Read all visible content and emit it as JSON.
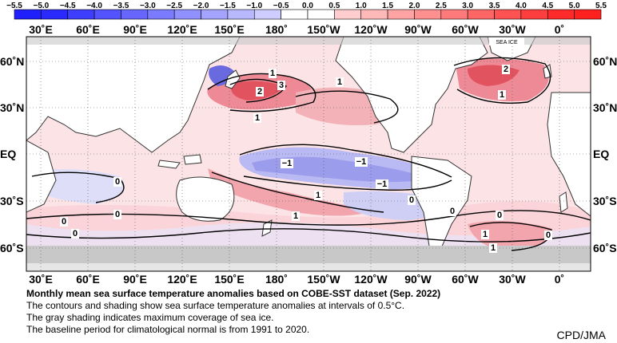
{
  "colorbar": {
    "ticks": [
      "−5.5",
      "−5.0",
      "−4.5",
      "−4.0",
      "−3.5",
      "−3.0",
      "−2.5",
      "−2.0",
      "−1.5",
      "−1.0",
      "−0.5",
      "0.0",
      "0.5",
      "1.0",
      "1.5",
      "2.0",
      "2.5",
      "3.0",
      "3.5",
      "4.0",
      "4.5",
      "5.0",
      "5.5"
    ],
    "negative_color": "#2020ff",
    "positive_color": "#ff2020",
    "neutral_color": "#ffffff"
  },
  "map": {
    "lon_labels_top": [
      "30˚E",
      "60˚E",
      "90˚E",
      "120˚E",
      "150˚E",
      "180˚",
      "150˚W",
      "120˚W",
      "90˚W",
      "60˚W",
      "30˚W",
      "0˚"
    ],
    "lon_labels_bottom": [
      "30˚E",
      "60˚E",
      "90˚E",
      "120˚E",
      "150˚E",
      "180˚",
      "150˚W",
      "120˚W",
      "90˚W",
      "60˚W",
      "30˚W",
      "0˚"
    ],
    "lat_labels_left": [
      "60˚N",
      "30˚N",
      "EQ",
      "30˚S",
      "60˚S"
    ],
    "lat_labels_right": [
      "60˚N",
      "30˚N",
      "EQ",
      "30˚S",
      "60˚S"
    ],
    "sea_ice_label": "SEA ICE",
    "contour_labels": [
      "1",
      "3",
      "2",
      "1",
      "1",
      "2",
      "1",
      "−1",
      "−1",
      "−1",
      "1",
      "0",
      "1",
      "0",
      "0",
      "0",
      "1",
      "0",
      "0",
      "1",
      "0",
      "0"
    ],
    "sea_ice_color": "#c8c8c8",
    "land_color": "#ffffff"
  },
  "caption": {
    "title": "Monthly mean sea surface temperature anomalies based on COBE-SST dataset (Sep. 2022)",
    "line1": "The contours and shading show sea surface temperature anomalies at intervals of 0.5°C.",
    "line2": "The gray shading indicates maximum coverage of sea ice.",
    "line3": "The baseline period for climatological normal is from 1991 to 2020."
  },
  "credit": "CPD/JMA"
}
